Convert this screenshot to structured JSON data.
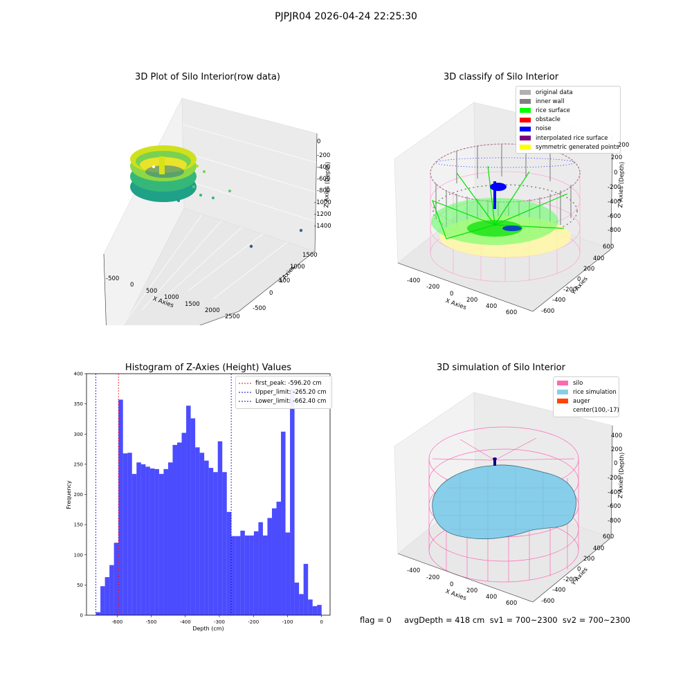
{
  "suptitle": "PJPJR04 2026-04-24 22:25:30",
  "footer": "flag = 0     avgDepth = 418 cm  sv1 = 700~2300  sv2 = 700~2300",
  "panels": {
    "raw": {
      "title": "3D Plot of Silo Interior(row data)",
      "xlabel": "X Axies",
      "ylabel": "Y Axies",
      "zlabel": "Z Axies (Depth)",
      "xticks": [
        "-500",
        "0",
        "500",
        "1000",
        "1500",
        "2000",
        "2500"
      ],
      "yticks": [
        "-500",
        "0",
        "500",
        "1000",
        "1500"
      ],
      "zticks": [
        "0",
        "-200",
        "-400",
        "-600",
        "-800",
        "-1000",
        "-1200",
        "-1400"
      ]
    },
    "classify": {
      "title": "3D classify of Silo Interior",
      "xlabel": "X Axies",
      "ylabel": "Y Axies",
      "zlabel": "Z Axies (Depth)",
      "xticks": [
        "-400",
        "-200",
        "0",
        "200",
        "400",
        "600"
      ],
      "yticks": [
        "-600",
        "-400",
        "-200",
        "0",
        "200",
        "400",
        "600"
      ],
      "zticks": [
        "200",
        "0",
        "-200",
        "-400",
        "-600",
        "-800"
      ],
      "legend": [
        {
          "label": "original data",
          "color": "#b0b0b0"
        },
        {
          "label": "inner wall",
          "color": "#808080"
        },
        {
          "label": "rice surface",
          "color": "#00ff00"
        },
        {
          "label": "obstacle",
          "color": "#ff0000"
        },
        {
          "label": "noise",
          "color": "#0000ff"
        },
        {
          "label": "interpolated rice surface",
          "color": "#800080"
        },
        {
          "label": "symmetric generated points",
          "color": "#ffff00"
        }
      ]
    },
    "simulation": {
      "title": "3D simulation of Silo Interior",
      "xlabel": "X Axies",
      "ylabel": "Y Axies",
      "zlabel": "Z Axies (Depth)",
      "xticks": [
        "-400",
        "-200",
        "0",
        "200",
        "400",
        "600"
      ],
      "yticks": [
        "-600",
        "-400",
        "-200",
        "0",
        "200",
        "400",
        "600"
      ],
      "zticks": [
        "400",
        "200",
        "0",
        "-200",
        "-400",
        "-600",
        "-800"
      ],
      "legend": [
        {
          "label": "silo",
          "color": "#ff69b4"
        },
        {
          "label": "rice simulation",
          "color": "#87ceeb"
        },
        {
          "label": "auger",
          "color": "#ff4500"
        },
        {
          "label": "center(100,-17)",
          "color": ""
        }
      ]
    }
  },
  "chart_data": [
    {
      "type": "bar",
      "title": "Histogram of Z-Axies (Height) Values",
      "xlabel": "Depth (cm)",
      "ylabel": "Frequency",
      "xlim": [
        -690,
        25
      ],
      "ylim": [
        0,
        400
      ],
      "xticks": [
        -600,
        -500,
        -400,
        -300,
        -200,
        -100,
        0
      ],
      "yticks": [
        0,
        50,
        100,
        150,
        200,
        250,
        300,
        350,
        400
      ],
      "bin_start": -662.4,
      "bin_width": 13.25,
      "values": [
        5,
        48,
        63,
        83,
        120,
        357,
        268,
        269,
        234,
        253,
        250,
        246,
        243,
        242,
        234,
        242,
        253,
        282,
        286,
        302,
        347,
        326,
        278,
        269,
        256,
        244,
        237,
        288,
        237,
        171,
        131,
        131,
        140,
        132,
        132,
        139,
        154,
        132,
        161,
        177,
        188,
        304,
        137,
        375,
        54,
        35,
        85,
        26,
        15,
        17
      ],
      "color": "#0000ff",
      "lines": [
        {
          "label": "first_peak: -596.20 cm",
          "x": -596.2,
          "color": "#ff0000"
        },
        {
          "label": "Upper_limit: -265.20 cm",
          "x": -265.2,
          "color": "#0000cc"
        },
        {
          "label": "Lower_limit: -662.40 cm",
          "x": -662.4,
          "color": "#0000cc"
        }
      ],
      "legend_position": "upper right"
    }
  ]
}
